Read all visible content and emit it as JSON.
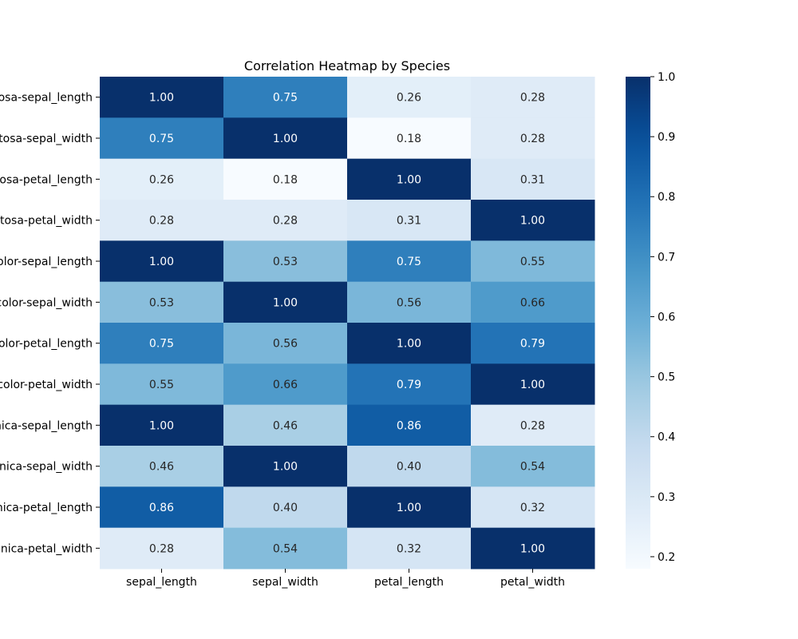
{
  "chart_data": {
    "type": "heatmap",
    "title": "Correlation Heatmap by Species",
    "row_labels": [
      "setosa-sepal_length",
      "setosa-sepal_width",
      "setosa-petal_length",
      "setosa-petal_width",
      "versicolor-sepal_length",
      "versicolor-sepal_width",
      "versicolor-petal_length",
      "versicolor-petal_width",
      "virginica-sepal_length",
      "virginica-sepal_width",
      "virginica-petal_length",
      "virginica-petal_width"
    ],
    "col_labels": [
      "sepal_length",
      "sepal_width",
      "petal_length",
      "petal_width"
    ],
    "values": [
      [
        1.0,
        0.75,
        0.26,
        0.28
      ],
      [
        0.75,
        1.0,
        0.18,
        0.28
      ],
      [
        0.26,
        0.18,
        1.0,
        0.31
      ],
      [
        0.28,
        0.28,
        0.31,
        1.0
      ],
      [
        1.0,
        0.53,
        0.75,
        0.55
      ],
      [
        0.53,
        1.0,
        0.56,
        0.66
      ],
      [
        0.75,
        0.56,
        1.0,
        0.79
      ],
      [
        0.55,
        0.66,
        0.79,
        1.0
      ],
      [
        1.0,
        0.46,
        0.86,
        0.28
      ],
      [
        0.46,
        1.0,
        0.4,
        0.54
      ],
      [
        0.86,
        0.4,
        1.0,
        0.32
      ],
      [
        0.28,
        0.54,
        0.32,
        1.0
      ]
    ],
    "value_format": "2 decimals",
    "colormap": "Blues",
    "vmin": 0.18,
    "vmax": 1.0,
    "colorbar_ticks": [
      0.2,
      0.3,
      0.4,
      0.5,
      0.6,
      0.7,
      0.8,
      0.9,
      1.0
    ],
    "colorbar_tick_labels": [
      "0.2",
      "0.3",
      "0.4",
      "0.5",
      "0.6",
      "0.7",
      "0.8",
      "0.9",
      "1.0"
    ]
  }
}
